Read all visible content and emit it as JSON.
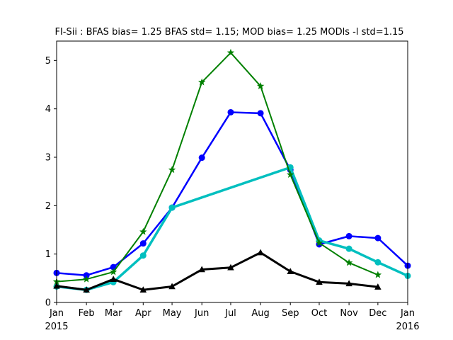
{
  "chart_data": {
    "type": "line",
    "title": "FI-Sii   : BFAS bias= 1.25 BFAS std= 1.15; MOD bias= 1.25 MODls -l std=1.15",
    "xlabel": "",
    "ylabel": "",
    "x_dates": [
      "2015-01-01",
      "2015-02-01",
      "2015-03-01",
      "2015-04-01",
      "2015-05-01",
      "2015-06-01",
      "2015-07-01",
      "2015-08-01",
      "2015-09-01",
      "2015-10-01",
      "2015-11-01",
      "2015-12-01",
      "2016-01-01"
    ],
    "xlim": [
      "2015-01-01",
      "2016-01-01"
    ],
    "ylim": [
      0,
      5.4
    ],
    "xticks": [
      {
        "date": "2015-01-01",
        "label": "Jan",
        "sublabel": "2015"
      },
      {
        "date": "2015-02-01",
        "label": "Feb",
        "sublabel": ""
      },
      {
        "date": "2015-03-01",
        "label": "Mar",
        "sublabel": ""
      },
      {
        "date": "2015-04-01",
        "label": "Apr",
        "sublabel": ""
      },
      {
        "date": "2015-05-01",
        "label": "May",
        "sublabel": ""
      },
      {
        "date": "2015-06-01",
        "label": "Jun",
        "sublabel": ""
      },
      {
        "date": "2015-07-01",
        "label": "Jul",
        "sublabel": ""
      },
      {
        "date": "2015-08-01",
        "label": "Aug",
        "sublabel": ""
      },
      {
        "date": "2015-09-01",
        "label": "Sep",
        "sublabel": ""
      },
      {
        "date": "2015-10-01",
        "label": "Oct",
        "sublabel": ""
      },
      {
        "date": "2015-11-01",
        "label": "Nov",
        "sublabel": ""
      },
      {
        "date": "2015-12-01",
        "label": "Dec",
        "sublabel": ""
      },
      {
        "date": "2016-01-01",
        "label": "Jan",
        "sublabel": "2016"
      }
    ],
    "yticks": [
      0,
      1,
      2,
      3,
      4,
      5
    ],
    "grid": false,
    "legend": "none",
    "series": [
      {
        "color": "#0000ff",
        "marker": "circle",
        "line_width": 2.5,
        "points": [
          {
            "x": "2015-01-01",
            "y": 0.61
          },
          {
            "x": "2015-02-01",
            "y": 0.56
          },
          {
            "x": "2015-03-01",
            "y": 0.73
          },
          {
            "x": "2015-04-01",
            "y": 1.22
          },
          {
            "x": "2015-05-01",
            "y": 1.96
          },
          {
            "x": "2015-06-01",
            "y": 2.99
          },
          {
            "x": "2015-07-01",
            "y": 3.93
          },
          {
            "x": "2015-08-01",
            "y": 3.91
          },
          {
            "x": "2015-09-01",
            "y": 2.74
          },
          {
            "x": "2015-10-01",
            "y": 1.2
          },
          {
            "x": "2015-11-01",
            "y": 1.37
          },
          {
            "x": "2015-12-01",
            "y": 1.33
          },
          {
            "x": "2016-01-01",
            "y": 0.76
          }
        ]
      },
      {
        "color": "#00bfbf",
        "marker": "circle",
        "line_width": 3.5,
        "points": [
          {
            "x": "2015-01-01",
            "y": 0.33
          },
          {
            "x": "2015-02-01",
            "y": 0.26
          },
          {
            "x": "2015-03-01",
            "y": 0.42
          },
          {
            "x": "2015-04-01",
            "y": 0.97
          },
          {
            "x": "2015-05-01",
            "y": 1.96
          },
          {
            "x": "2015-09-01",
            "y": 2.79
          },
          {
            "x": "2015-10-01",
            "y": 1.28
          },
          {
            "x": "2015-11-01",
            "y": 1.11
          },
          {
            "x": "2015-12-01",
            "y": 0.83
          },
          {
            "x": "2016-01-01",
            "y": 0.55
          }
        ]
      },
      {
        "color": "#008000",
        "marker": "star",
        "line_width": 2,
        "points": [
          {
            "x": "2015-01-01",
            "y": 0.43
          },
          {
            "x": "2015-02-01",
            "y": 0.48
          },
          {
            "x": "2015-03-01",
            "y": 0.63
          },
          {
            "x": "2015-04-01",
            "y": 1.46
          },
          {
            "x": "2015-05-01",
            "y": 2.74
          },
          {
            "x": "2015-06-01",
            "y": 4.55
          },
          {
            "x": "2015-07-01",
            "y": 5.16
          },
          {
            "x": "2015-08-01",
            "y": 4.47
          },
          {
            "x": "2015-09-01",
            "y": 2.64
          },
          {
            "x": "2015-10-01",
            "y": 1.23
          },
          {
            "x": "2015-11-01",
            "y": 0.82
          },
          {
            "x": "2015-12-01",
            "y": 0.57
          }
        ]
      },
      {
        "color": "#000000",
        "marker": "triangle",
        "line_width": 3,
        "points": [
          {
            "x": "2015-01-01",
            "y": 0.34
          },
          {
            "x": "2015-02-01",
            "y": 0.26
          },
          {
            "x": "2015-03-01",
            "y": 0.48
          },
          {
            "x": "2015-04-01",
            "y": 0.26
          },
          {
            "x": "2015-05-01",
            "y": 0.33
          },
          {
            "x": "2015-06-01",
            "y": 0.68
          },
          {
            "x": "2015-07-01",
            "y": 0.72
          },
          {
            "x": "2015-08-01",
            "y": 1.03
          },
          {
            "x": "2015-09-01",
            "y": 0.64
          },
          {
            "x": "2015-10-01",
            "y": 0.42
          },
          {
            "x": "2015-11-01",
            "y": 0.39
          },
          {
            "x": "2015-12-01",
            "y": 0.32
          }
        ]
      }
    ]
  }
}
